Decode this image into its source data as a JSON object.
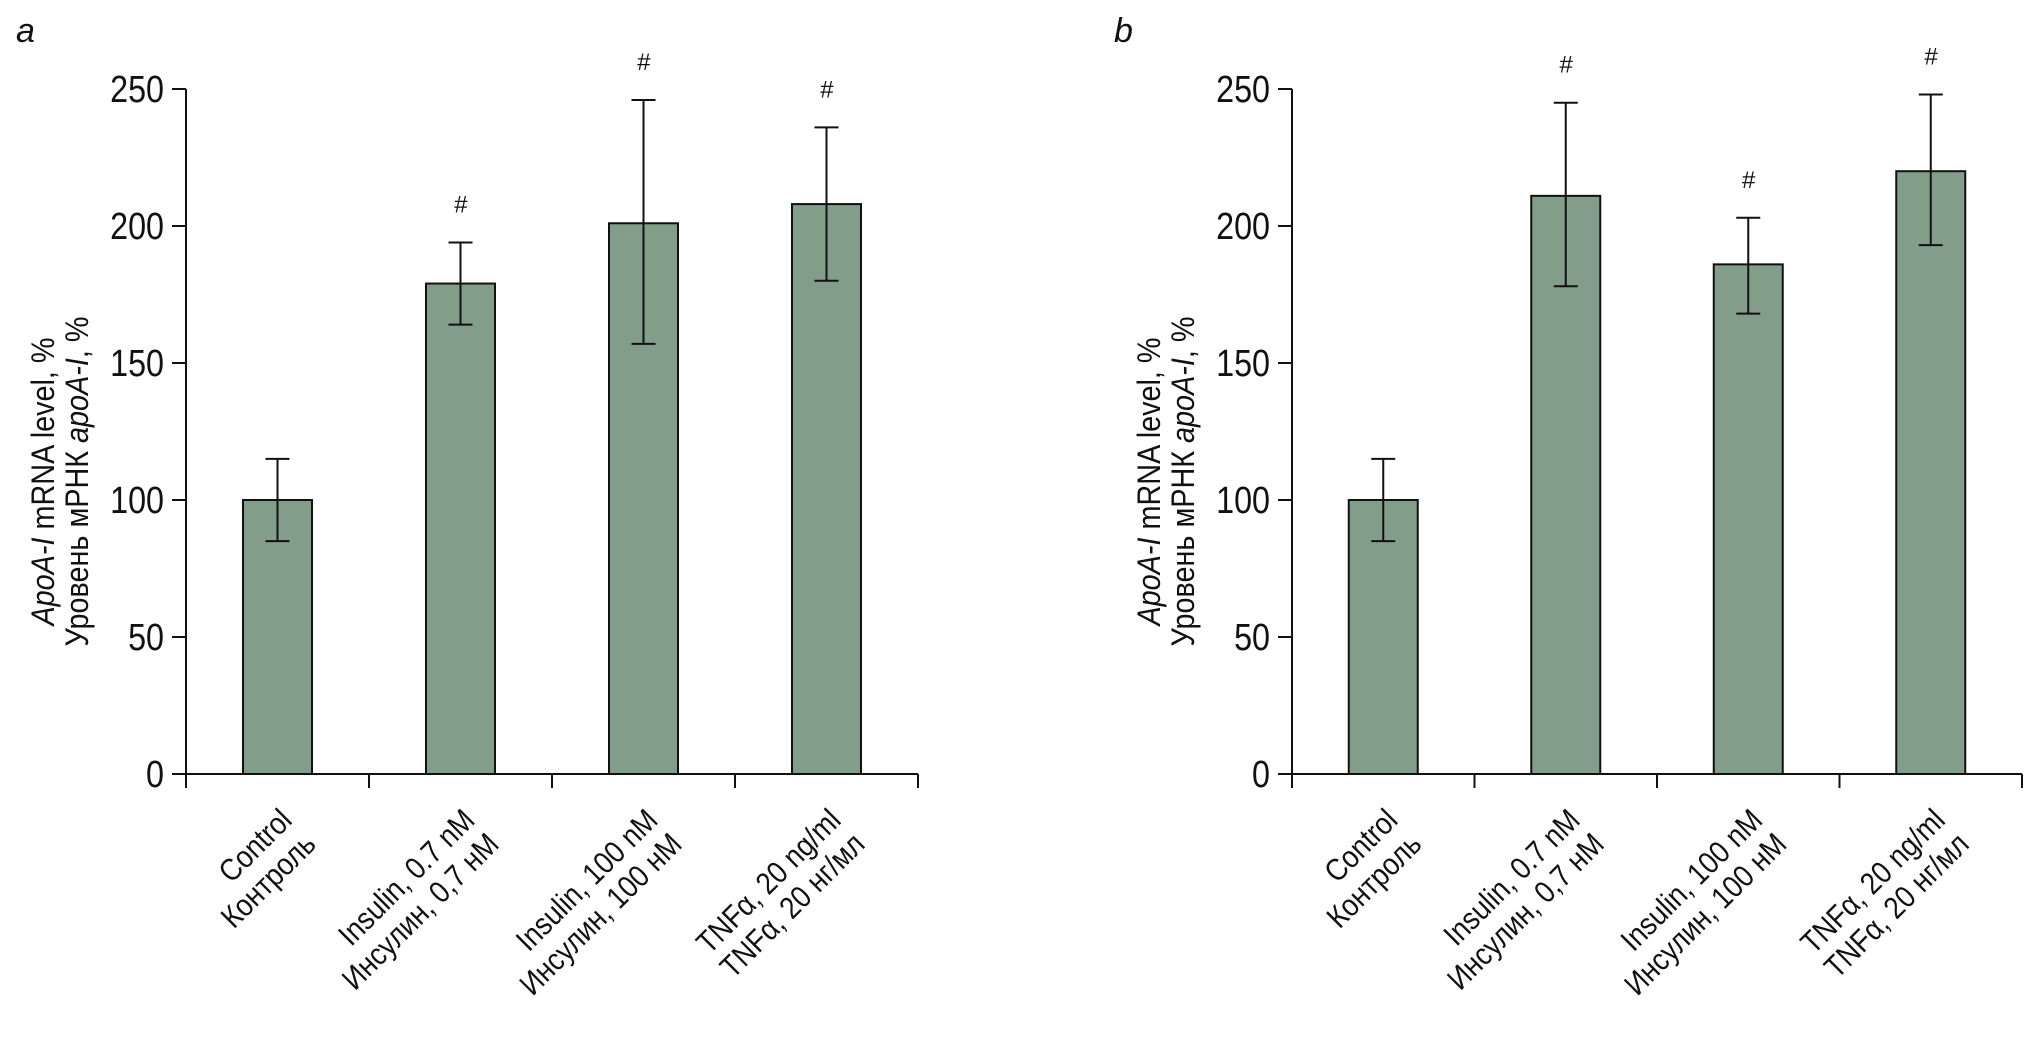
{
  "colors": {
    "bar": "#829e8a",
    "stroke": "#111111"
  },
  "chart_data": [
    {
      "type": "bar",
      "panel": "a",
      "title": "",
      "ylabel_line1_italic": "ApoA-I",
      "ylabel_line1_rest": " mRNA level, %",
      "ylabel_line2_rest": "Уровень мРНК ",
      "ylabel_line2_italic": "apoA-I",
      "ylabel_line2_end": ", %",
      "ylim": [
        0,
        250
      ],
      "yticks": [
        "0",
        "50",
        "100",
        "150",
        "200",
        "250"
      ],
      "categories": [
        [
          "Control",
          "Контроль"
        ],
        [
          "Insulin, 0.7 nM",
          "Инсулин, 0,7 нМ"
        ],
        [
          "Insulin, 100 nM",
          "Инсулин, 100 нМ"
        ],
        [
          "TNFα, 20 ng/ml",
          "TNFα, 20 нг/мл"
        ]
      ],
      "values": [
        100,
        179,
        201,
        208
      ],
      "error_low": [
        85,
        164,
        157,
        180
      ],
      "error_high": [
        115,
        194,
        246,
        236
      ],
      "significance": [
        "",
        "#",
        "#",
        "#"
      ]
    },
    {
      "type": "bar",
      "panel": "b",
      "title": "",
      "ylabel_line1_italic": "ApoA-I",
      "ylabel_line1_rest": " mRNA level, %",
      "ylabel_line2_rest": "Уровень мРНК ",
      "ylabel_line2_italic": "apoA-I",
      "ylabel_line2_end": ", %",
      "ylim": [
        0,
        250
      ],
      "yticks": [
        "0",
        "50",
        "100",
        "150",
        "200",
        "250"
      ],
      "categories": [
        [
          "Control",
          "Контроль"
        ],
        [
          "Insulin, 0.7 nM",
          "Инсулин, 0,7 нМ"
        ],
        [
          "Insulin, 100 nM",
          "Инсулин, 100 нМ"
        ],
        [
          "TNFα, 20 ng/ml",
          "TNFα, 20 нг/мл"
        ]
      ],
      "values": [
        100,
        211,
        186,
        220
      ],
      "error_low": [
        85,
        178,
        168,
        193
      ],
      "error_high": [
        115,
        245,
        203,
        248
      ],
      "significance": [
        "",
        "#",
        "#",
        "#"
      ]
    }
  ]
}
